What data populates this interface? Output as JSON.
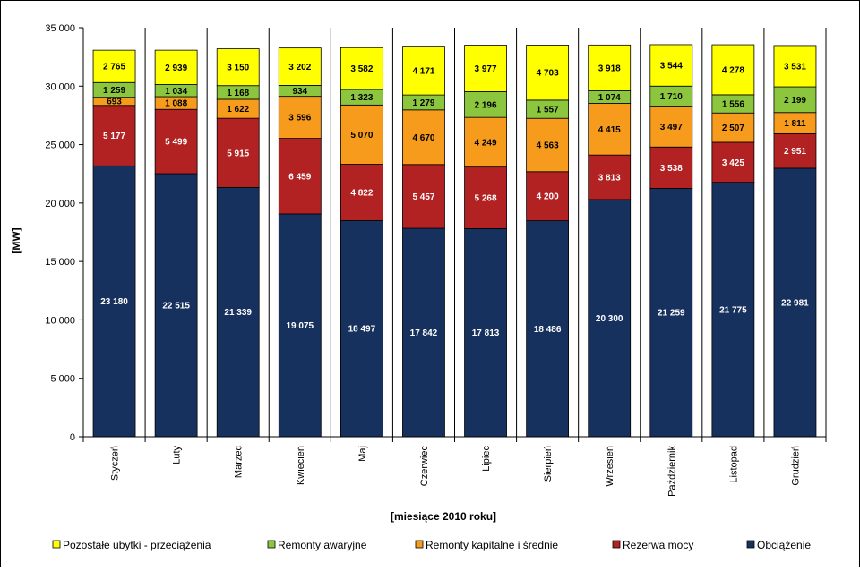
{
  "chart_data": {
    "type": "bar",
    "stacked": true,
    "title": "",
    "xlabel": "[miesiące 2010 roku]",
    "ylabel": "[MW]",
    "ylim": [
      0,
      35000
    ],
    "yticks": [
      0,
      5000,
      10000,
      15000,
      20000,
      25000,
      30000,
      35000
    ],
    "ytick_labels": [
      "0",
      "5 000",
      "10 000",
      "15 000",
      "20 000",
      "25 000",
      "30 000",
      "35 000"
    ],
    "grid": false,
    "legend_position": "bottom",
    "categories": [
      "Styczeń",
      "Luty",
      "Marzec",
      "Kwiecień",
      "Maj",
      "Czerwiec",
      "Lipiec",
      "Sierpień",
      "Wrzesień",
      "Październik",
      "Listopad",
      "Grudzień"
    ],
    "series": [
      {
        "name": "Obciążenie",
        "color": "#17315e",
        "label_color": "#ffffff",
        "values": [
          23180,
          22515,
          21339,
          19075,
          18497,
          17842,
          17813,
          18486,
          20300,
          21259,
          21775,
          22981
        ],
        "labels": [
          "23 180",
          "22 515",
          "21 339",
          "19 075",
          "18 497",
          "17 842",
          "17 813",
          "18 486",
          "20 300",
          "21 259",
          "21 775",
          "22 981"
        ]
      },
      {
        "name": "Rezerwa  mocy",
        "color": "#b22222",
        "label_color": "#ffffff",
        "values": [
          5177,
          5499,
          5915,
          6459,
          4822,
          5457,
          5268,
          4200,
          3813,
          3538,
          3425,
          2951
        ],
        "labels": [
          "5 177",
          "5 499",
          "5 915",
          "6 459",
          "4 822",
          "5 457",
          "5 268",
          "4 200",
          "3 813",
          "3 538",
          "3 425",
          "2 951"
        ]
      },
      {
        "name": "Remonty kapitalne i średnie",
        "color": "#f79b1c",
        "label_color": "#000000",
        "values": [
          693,
          1088,
          1622,
          3596,
          5070,
          4670,
          4249,
          4563,
          4415,
          3497,
          2507,
          1811
        ],
        "labels": [
          "693",
          "1 088",
          "1 622",
          "3 596",
          "5 070",
          "4 670",
          "4 249",
          "4 563",
          "4 415",
          "3 497",
          "2 507",
          "1 811"
        ]
      },
      {
        "name": "Remonty awaryjne",
        "color": "#8cc63f",
        "label_color": "#000000",
        "values": [
          1259,
          1034,
          1168,
          934,
          1323,
          1279,
          2196,
          1557,
          1074,
          1710,
          1556,
          2199
        ],
        "labels": [
          "1 259",
          "1 034",
          "1 168",
          "934",
          "1 323",
          "1 279",
          "2 196",
          "1 557",
          "1 074",
          "1 710",
          "1 556",
          "2 199"
        ]
      },
      {
        "name": "Pozostałe ubytki - przeciążenia",
        "color": "#ffff00",
        "label_color": "#000000",
        "values": [
          2765,
          2939,
          3150,
          3202,
          3582,
          4171,
          3977,
          4703,
          3918,
          3544,
          4278,
          3531
        ],
        "labels": [
          "2 765",
          "2 939",
          "3 150",
          "3 202",
          "3 582",
          "4 171",
          "3 977",
          "4 703",
          "3 918",
          "3 544",
          "4 278",
          "3 531"
        ]
      }
    ],
    "legend_order": [
      4,
      3,
      2,
      1,
      0
    ]
  }
}
